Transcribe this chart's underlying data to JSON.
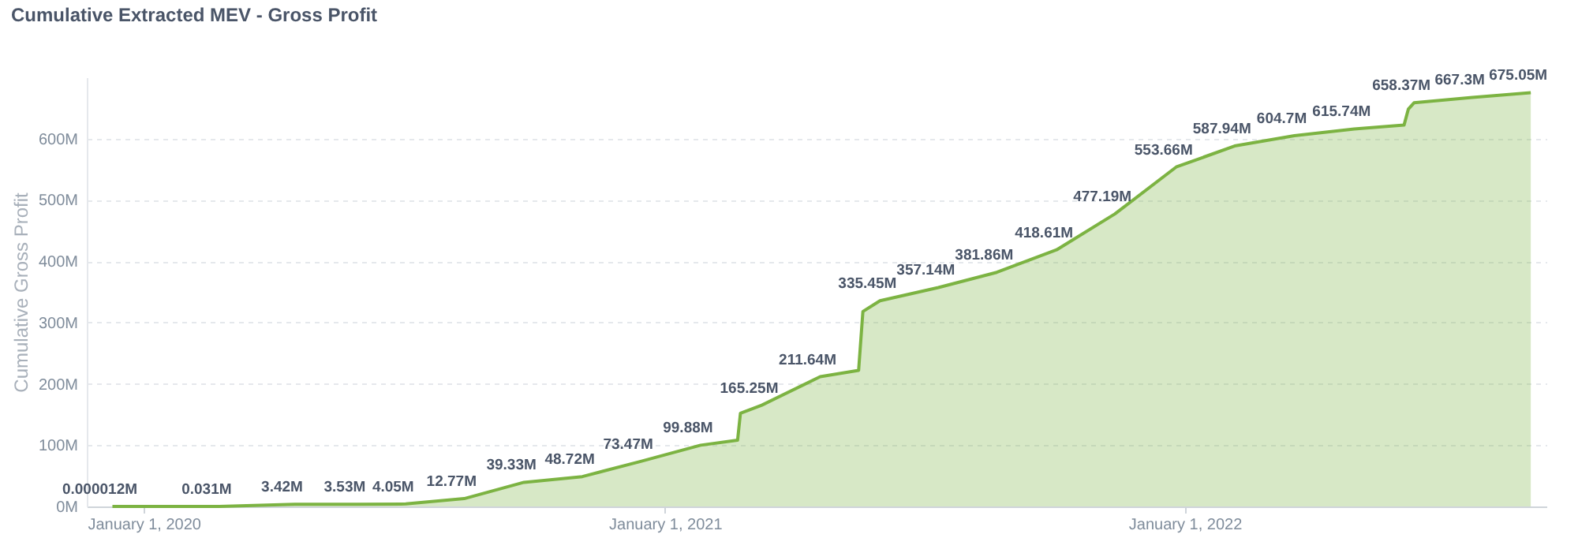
{
  "chart_data": {
    "type": "area",
    "title": "Cumulative Extracted MEV - Gross Profit",
    "ylabel": "Cumulative Gross Profit",
    "x": [
      "2019-12-10",
      "2020-02-23",
      "2020-04-16",
      "2020-05-30",
      "2020-07-03",
      "2020-08-13",
      "2020-09-24",
      "2020-11-04",
      "2020-12-15",
      "2021-01-26",
      "2021-02-21",
      "2021-02-23",
      "2021-03-10",
      "2021-04-20",
      "2021-05-17",
      "2021-05-20",
      "2021-06-01",
      "2021-07-12",
      "2021-08-22",
      "2021-10-03",
      "2021-11-13",
      "2021-12-26",
      "2022-02-05",
      "2022-03-19",
      "2022-04-30",
      "2022-06-04",
      "2022-06-07",
      "2022-06-11",
      "2022-07-22",
      "2022-09-01"
    ],
    "series": [
      {
        "color": "#7cb342",
        "values": [
          1.2e-05,
          0.031,
          3.42,
          3.53,
          4.05,
          12.77,
          39.33,
          48.72,
          73.47,
          99.88,
          108,
          152,
          165.25,
          211.64,
          222,
          318,
          335.45,
          357.14,
          381.86,
          418.61,
          477.19,
          553.66,
          587.94,
          604.7,
          615.74,
          622,
          648,
          658.37,
          667.3,
          675.05
        ],
        "value_labels": [
          "0.000012M",
          "0.031M",
          "3.42M",
          "3.53M",
          "4.05M",
          "12.77M",
          "39.33M",
          "48.72M",
          "73.47M",
          "99.88M",
          null,
          null,
          "165.25M",
          "211.64M",
          null,
          null,
          "335.45M",
          "357.14M",
          "381.86M",
          "418.61M",
          "477.19M",
          "553.66M",
          "587.94M",
          "604.7M",
          "615.74M",
          null,
          null,
          "658.37M",
          "667.3M",
          "675.05M"
        ]
      }
    ],
    "xlim": [
      "2019-11-22",
      "2022-09-12"
    ],
    "xticks": [
      {
        "value": "2020-01-01",
        "label": "January 1, 2020"
      },
      {
        "value": "2021-01-01",
        "label": "January 1, 2021"
      },
      {
        "value": "2022-01-01",
        "label": "January 1, 2022"
      }
    ],
    "ylim": [
      0,
      700
    ],
    "yticks": [
      {
        "value": 0,
        "label": "0M"
      },
      {
        "value": 100,
        "label": "100M"
      },
      {
        "value": 200,
        "label": "200M"
      },
      {
        "value": 300,
        "label": "300M"
      },
      {
        "value": 400,
        "label": "400M"
      },
      {
        "value": 500,
        "label": "500M"
      },
      {
        "value": 600,
        "label": "600M"
      }
    ],
    "grid": "y"
  }
}
